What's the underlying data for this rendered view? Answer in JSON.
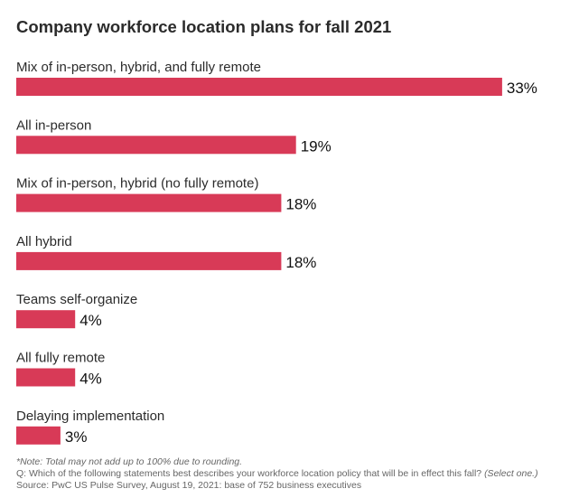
{
  "chart_data": {
    "type": "bar",
    "orientation": "horizontal",
    "title": "Company workforce location plans for fall 2021",
    "categories": [
      "Mix of in-person, hybrid, and fully remote",
      "All in-person",
      "Mix of in-person, hybrid (no fully remote)",
      "All hybrid",
      "Teams self-organize",
      "All fully remote",
      "Delaying implementation"
    ],
    "values": [
      33,
      19,
      18,
      18,
      4,
      4,
      3
    ],
    "value_labels": [
      "33%",
      "19%",
      "18%",
      "18%",
      "4%",
      "4%",
      "3%"
    ],
    "unit": "%",
    "grid": false,
    "bar_color": "#d83a57"
  },
  "footnotes": {
    "note": "*Note: Total may not add up to 100% due to rounding.",
    "question": "Q: Which of the following statements best describes your workforce location policy that will be in effect this fall?",
    "question_suffix": "(Select one.)",
    "source": "Source: PwC US Pulse Survey, August 19, 2021: base of 752 business executives"
  }
}
